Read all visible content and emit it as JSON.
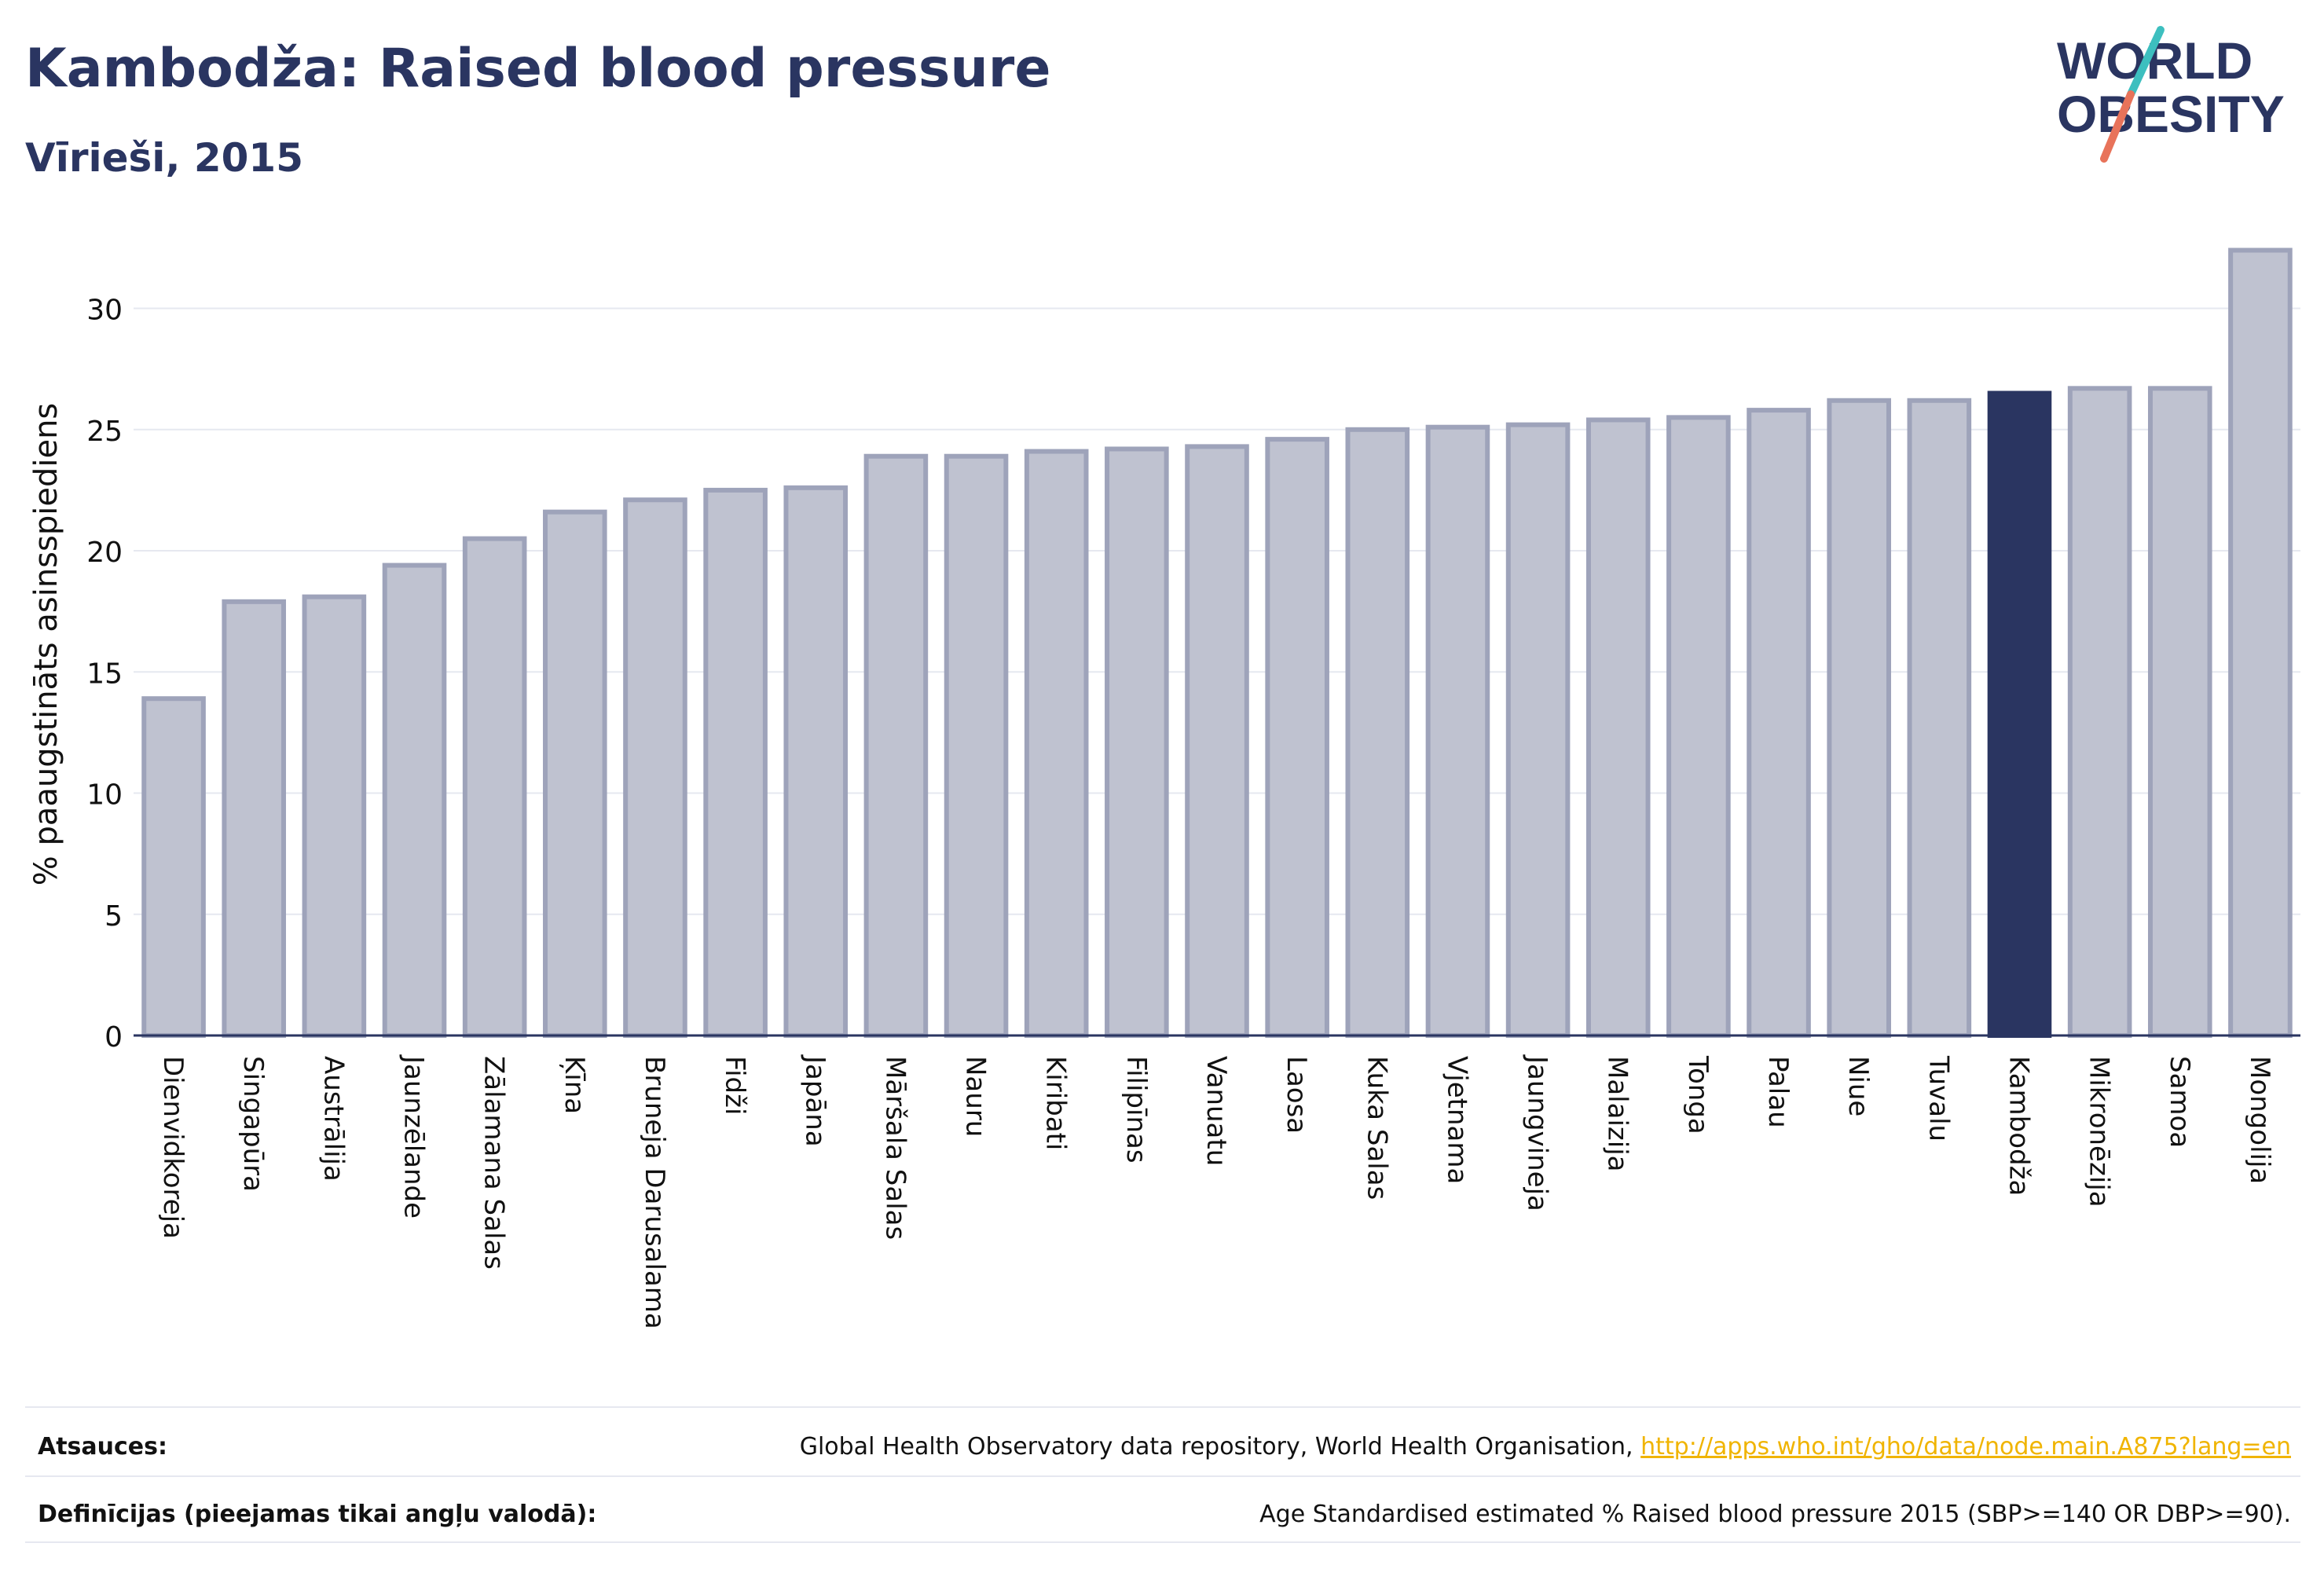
{
  "header": {
    "title": "Kambodža: Raised blood pressure",
    "subtitle": "Vīrieši, 2015"
  },
  "logo": {
    "line1": "WORLD",
    "line2": "OBESITY",
    "text_color": "#2a3561",
    "slash_colors": [
      "#3dbfbf",
      "#e8735a"
    ]
  },
  "colors": {
    "bar_fill": "#bfc2d0",
    "bar_stroke": "#9ea3ba",
    "highlight": "#2a3561",
    "grid": "#e6e8f0",
    "axis": "#2a3561",
    "link": "#f0b400"
  },
  "chart_data": {
    "type": "bar",
    "ylabel": "% paaugstināts asinsspiediens",
    "xlabel": "",
    "ylim": [
      0,
      33
    ],
    "yticks": [
      0,
      5,
      10,
      15,
      20,
      25,
      30
    ],
    "grid": true,
    "highlight_category": "Kambodža",
    "categories": [
      "Dienvidkoreja",
      "Singapūra",
      "Austrālija",
      "Jaunzēlande",
      "Zālamana Salas",
      "Ķīna",
      "Bruneja Darusalama",
      "Fidži",
      "Japāna",
      "Māršala Salas",
      "Nauru",
      "Kiribati",
      "Filipīnas",
      "Vanuatu",
      "Laosa",
      "Kuka Salas",
      "Vjetnama",
      "Jaungvineja",
      "Malaizija",
      "Tonga",
      "Palau",
      "Niue",
      "Tuvalu",
      "Kambodža",
      "Mikronēzija",
      "Samoa",
      "Mongolija"
    ],
    "values": [
      13.9,
      17.9,
      18.1,
      19.4,
      20.5,
      21.6,
      22.1,
      22.5,
      22.6,
      23.9,
      23.9,
      24.1,
      24.2,
      24.3,
      24.6,
      25.0,
      25.1,
      25.2,
      25.4,
      25.5,
      25.8,
      26.2,
      26.2,
      26.5,
      26.7,
      26.7,
      32.4
    ]
  },
  "footer": {
    "sources_label": "Atsauces:",
    "sources_text": "Global Health Observatory data repository, World Health Organisation,",
    "sources_link": "http://apps.who.int/gho/data/node.main.A875?lang=en",
    "definitions_label": "Definīcijas (pieejamas tikai angļu valodā):",
    "definitions_text": "Age Standardised estimated % Raised blood pressure 2015 (SBP>=140 OR DBP>=90)."
  }
}
